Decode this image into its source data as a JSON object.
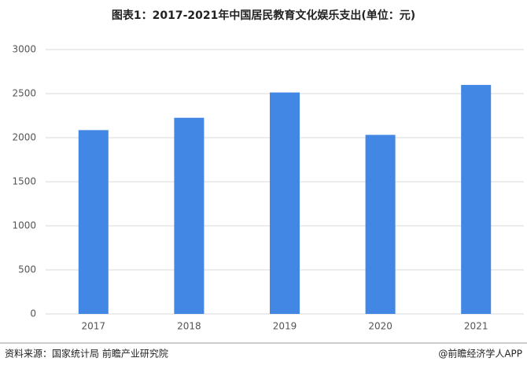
{
  "chart_data": {
    "type": "bar",
    "title": "图表1：2017-2021年中国居民教育文化娱乐支出(单位：元)",
    "categories": [
      "2017",
      "2018",
      "2019",
      "2020",
      "2021"
    ],
    "values": [
      2086,
      2226,
      2513,
      2032,
      2599
    ],
    "color": "#4287e3",
    "ylim": [
      0,
      3000
    ],
    "yticks": [
      0,
      500,
      1000,
      1500,
      2000,
      2500,
      3000
    ],
    "grid": true,
    "source": "资料来源：国家统计局 前瞻产业研究院",
    "credit": "@前瞻经济学人APP"
  }
}
